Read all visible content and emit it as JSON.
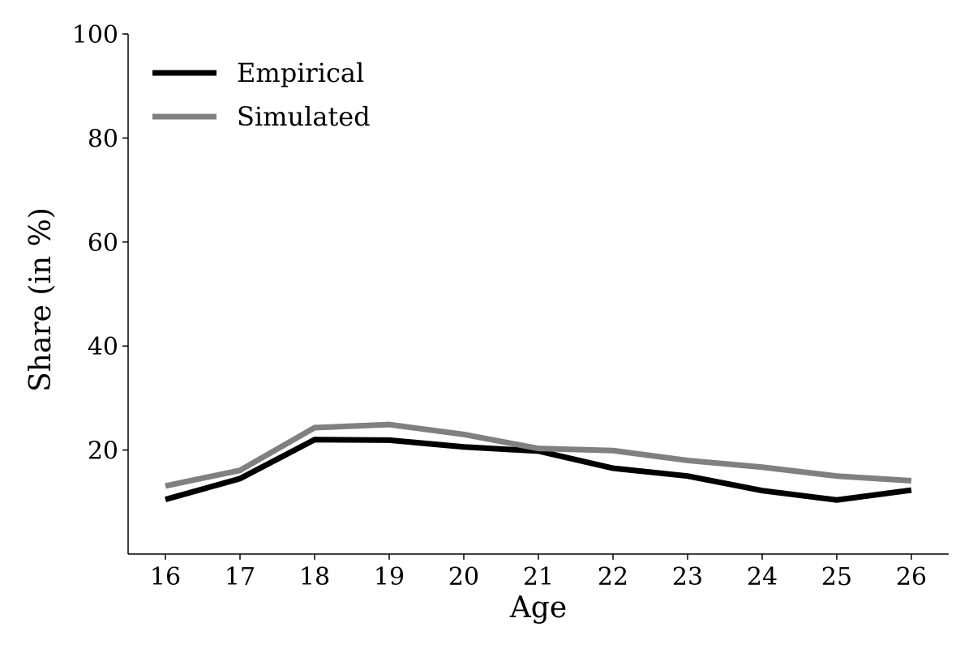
{
  "chart_data": {
    "type": "line",
    "title": "",
    "xlabel": "Age",
    "ylabel": "Share (in %)",
    "x": [
      16,
      17,
      18,
      19,
      20,
      21,
      22,
      23,
      24,
      25,
      26
    ],
    "x_tick_labels": [
      "16",
      "17",
      "18",
      "19",
      "20",
      "21",
      "22",
      "23",
      "24",
      "25",
      "26"
    ],
    "y_tick_values": [
      20,
      40,
      60,
      80,
      100
    ],
    "y_tick_labels": [
      "20",
      "40",
      "60",
      "80",
      "100"
    ],
    "xlim": [
      15.5,
      26.5
    ],
    "ylim": [
      0,
      100
    ],
    "grid": false,
    "legend_position": "top-left",
    "series": [
      {
        "name": "Empirical",
        "color": "#000000",
        "values": [
          10.5,
          14.5,
          22.0,
          21.9,
          20.6,
          19.8,
          16.5,
          15.0,
          12.2,
          10.4,
          12.3
        ]
      },
      {
        "name": "Simulated",
        "color": "#808080",
        "values": [
          13.1,
          16.1,
          24.3,
          24.9,
          23.0,
          20.3,
          19.9,
          18.0,
          16.7,
          15.0,
          14.1
        ]
      }
    ]
  }
}
